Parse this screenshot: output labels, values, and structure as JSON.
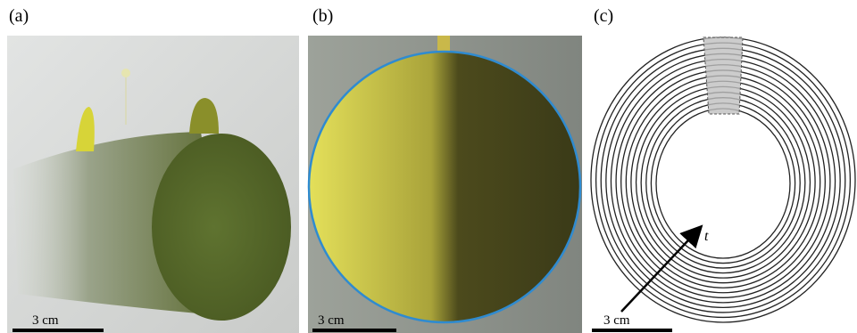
{
  "panels": [
    {
      "label": "(a)",
      "scale_bar": "3 cm"
    },
    {
      "label": "(b)",
      "scale_bar": "3 cm"
    },
    {
      "label": "(c)",
      "scale_bar": "3 cm",
      "arrow_label": "t"
    }
  ]
}
